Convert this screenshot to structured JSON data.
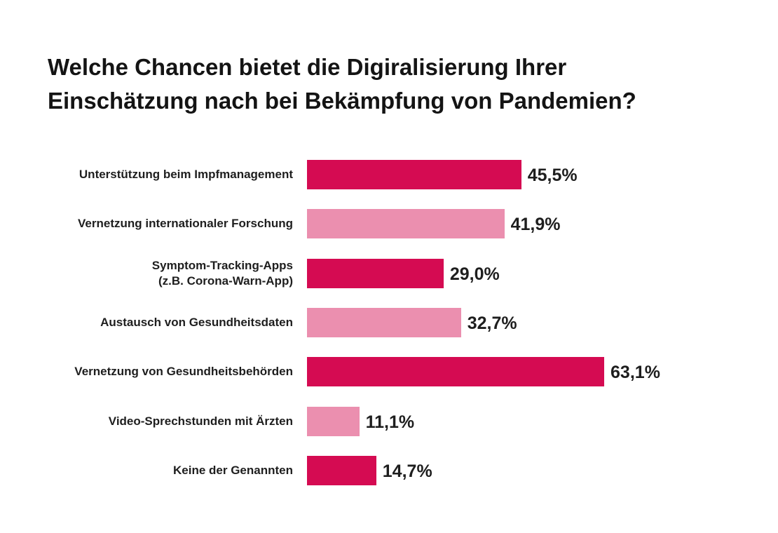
{
  "chart_data": {
    "type": "bar",
    "orientation": "horizontal",
    "title_lines": [
      "Welche Chancen bietet die Digiralisierung Ihrer",
      "Einschätzung nach bei Bekämpfung von Pandemien?"
    ],
    "unit": "%",
    "xlim": [
      0,
      100
    ],
    "categories": [
      {
        "label_lines": [
          "Unterstützung beim Impfmanagement"
        ],
        "value": 45.5,
        "value_label": "45,5%",
        "color": "#d50b52"
      },
      {
        "label_lines": [
          "Vernetzung internationaler Forschung"
        ],
        "value": 41.9,
        "value_label": "41,9%",
        "color": "#eb8faf"
      },
      {
        "label_lines": [
          "Symptom-Tracking-Apps",
          "(z.B. Corona-Warn-App)"
        ],
        "value": 29.0,
        "value_label": "29,0%",
        "color": "#d50b52"
      },
      {
        "label_lines": [
          "Austausch von Gesundheitsdaten"
        ],
        "value": 32.7,
        "value_label": "32,7%",
        "color": "#eb8faf"
      },
      {
        "label_lines": [
          "Vernetzung von Gesundheitsbehörden"
        ],
        "value": 63.1,
        "value_label": "63,1%",
        "color": "#d50b52"
      },
      {
        "label_lines": [
          "Video-Sprechstunden mit Ärzten"
        ],
        "value": 11.1,
        "value_label": "11,1%",
        "color": "#eb8faf"
      },
      {
        "label_lines": [
          "Keine der Genannten"
        ],
        "value": 14.7,
        "value_label": "14,7%",
        "color": "#d50b52"
      }
    ],
    "colors": {
      "primary": "#d50b52",
      "secondary": "#eb8faf"
    }
  }
}
